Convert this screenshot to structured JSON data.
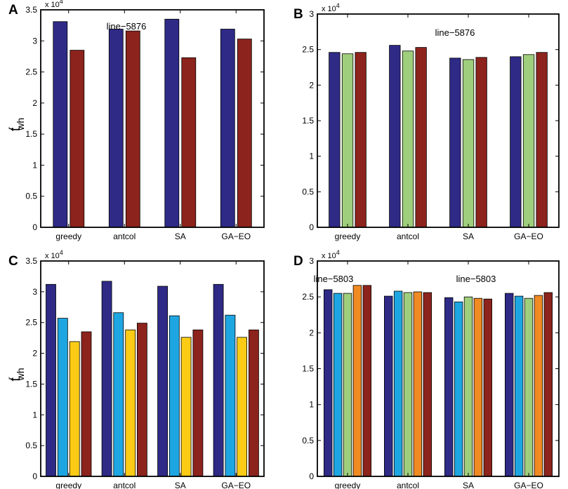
{
  "figure": {
    "ylabel": {
      "base": "t",
      "superscript": "r",
      "subscript": "wh"
    },
    "exponent_label": {
      "base": "x 10",
      "power": "4"
    }
  },
  "colors": {
    "navy": "#2e2a86",
    "cyan": "#1ea6e2",
    "green": "#9fce7c",
    "yellow": "#fccb16",
    "orange": "#f08a23",
    "darkred": "#8c231c"
  },
  "chart_data": [
    {
      "panel": "A",
      "type": "bar",
      "title": "line−5876",
      "categories": [
        "greedy",
        "antcol",
        "SA",
        "GA−EO"
      ],
      "ylim": [
        0,
        3.5
      ],
      "yticks": [
        0,
        0.5,
        1,
        1.5,
        2,
        2.5,
        3,
        3.5
      ],
      "ytick_labels": [
        "0",
        "0.5",
        "1",
        "1.5",
        "2",
        "2.5",
        "3",
        "3.5"
      ],
      "scale": "x 10^4",
      "series": [
        {
          "name": "series-1",
          "color": "navy",
          "values": [
            3.31,
            3.19,
            3.35,
            3.19
          ]
        },
        {
          "name": "series-2",
          "color": "darkred",
          "values": [
            2.85,
            3.16,
            2.73,
            3.03
          ]
        }
      ]
    },
    {
      "panel": "B",
      "type": "bar",
      "title": "line−5876",
      "categories": [
        "greedy",
        "antcol",
        "SA",
        "GA−EO"
      ],
      "ylim": [
        0,
        3
      ],
      "yticks": [
        0,
        0.5,
        1,
        1.5,
        2,
        2.5,
        3
      ],
      "ytick_labels": [
        "0",
        "0.5",
        "1",
        "1.5",
        "2",
        "2.5",
        "3"
      ],
      "scale": "x 10^4",
      "series": [
        {
          "name": "series-1",
          "color": "navy",
          "values": [
            2.46,
            2.56,
            2.38,
            2.4
          ]
        },
        {
          "name": "series-2",
          "color": "green",
          "values": [
            2.44,
            2.48,
            2.36,
            2.43
          ]
        },
        {
          "name": "series-3",
          "color": "darkred",
          "values": [
            2.46,
            2.53,
            2.39,
            2.46
          ]
        }
      ]
    },
    {
      "panel": "C",
      "type": "bar",
      "title": "line−5803",
      "categories": [
        "greedy",
        "antcol",
        "SA",
        "GA−EO"
      ],
      "ylim": [
        0,
        3.5
      ],
      "yticks": [
        0,
        0.5,
        1,
        1.5,
        2,
        2.5,
        3,
        3.5
      ],
      "ytick_labels": [
        "0",
        "0.5",
        "1",
        "1.5",
        "2",
        "2.5",
        "3",
        "3.5"
      ],
      "scale": "x 10^4",
      "series": [
        {
          "name": "series-1",
          "color": "navy",
          "values": [
            3.12,
            3.17,
            3.09,
            3.12
          ]
        },
        {
          "name": "series-2",
          "color": "cyan",
          "values": [
            2.57,
            2.66,
            2.61,
            2.62
          ]
        },
        {
          "name": "series-3",
          "color": "yellow",
          "values": [
            2.19,
            2.38,
            2.26,
            2.26
          ]
        },
        {
          "name": "series-4",
          "color": "darkred",
          "values": [
            2.35,
            2.49,
            2.38,
            2.38
          ]
        }
      ]
    },
    {
      "panel": "D",
      "type": "bar",
      "title": "line−5803",
      "categories": [
        "greedy",
        "antcol",
        "SA",
        "GA−EO"
      ],
      "ylim": [
        0,
        3
      ],
      "yticks": [
        0,
        0.5,
        1,
        1.5,
        2,
        2.5,
        3
      ],
      "ytick_labels": [
        "0",
        "0.5",
        "1",
        "1.5",
        "2",
        "2.5",
        "3"
      ],
      "scale": "x 10^4",
      "series": [
        {
          "name": "series-1",
          "color": "navy",
          "values": [
            2.6,
            2.51,
            2.49,
            2.55
          ]
        },
        {
          "name": "series-2",
          "color": "cyan",
          "values": [
            2.55,
            2.58,
            2.43,
            2.51
          ]
        },
        {
          "name": "series-3",
          "color": "green",
          "values": [
            2.55,
            2.56,
            2.5,
            2.48
          ]
        },
        {
          "name": "series-4",
          "color": "orange",
          "values": [
            2.66,
            2.57,
            2.48,
            2.52
          ]
        },
        {
          "name": "series-5",
          "color": "darkred",
          "values": [
            2.66,
            2.56,
            2.47,
            2.56
          ]
        }
      ]
    }
  ]
}
